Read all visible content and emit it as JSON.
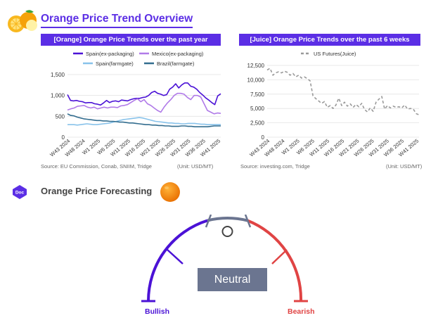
{
  "header": {
    "title": "Orange Price Trend Overview",
    "icon": "orange-icon"
  },
  "charts": {
    "left": {
      "title": "[Orange] Orange Price Trends over the past year",
      "source": "Source: EU Commission, Conab, SNIIM, Tridge",
      "unit": "(Unit: USD/MT)"
    },
    "right": {
      "title": "[Juice] Orange Price Trends over the past 6 weeks",
      "source": "Source: investing.com, Tridge",
      "unit": "(Unit: USD/MT)"
    }
  },
  "chart_data": [
    {
      "type": "line",
      "title": "[Orange] Orange Price Trends over the past year",
      "ylim": [
        0,
        1500
      ],
      "yticks": [
        "0",
        "500",
        "1,000",
        "1,500"
      ],
      "xtick_labels": [
        "W43 2024",
        "W48 2024",
        "W1 2025",
        "W6 2025",
        "W11 2025",
        "W16 2025",
        "W21 2025",
        "W26 2025",
        "W31 2025",
        "W36 2025",
        "W41 2025"
      ],
      "grid": true,
      "legend_position": "top",
      "series": [
        {
          "name": "Spain(ex-packaging)",
          "color": "#4b12d6",
          "dash": "solid",
          "values": [
            1020,
            880,
            870,
            880,
            860,
            850,
            820,
            830,
            830,
            800,
            790,
            770,
            820,
            880,
            830,
            860,
            870,
            850,
            890,
            880,
            870,
            900,
            920,
            930,
            930,
            950,
            960,
            1000,
            1070,
            1100,
            1050,
            1030,
            1000,
            1020,
            1150,
            1200,
            1280,
            1180,
            1250,
            1300,
            1300,
            1220,
            1200,
            1150,
            1070,
            1010,
            940,
            890,
            830,
            780,
            990,
            1040
          ]
        },
        {
          "name": "Mexico(ex-packaging)",
          "color": "#b07ae8",
          "dash": "solid",
          "values": [
            650,
            680,
            700,
            740,
            750,
            760,
            720,
            700,
            720,
            680,
            700,
            720,
            700,
            720,
            720,
            710,
            750,
            760,
            780,
            830,
            880,
            920,
            850,
            900,
            800,
            760,
            700,
            640,
            600,
            720,
            820,
            900,
            1000,
            1050,
            1050,
            1030,
            950,
            900,
            1000,
            1000,
            960,
            800,
            640,
            600,
            560,
            580,
            570
          ]
        },
        {
          "name": "Spain(farmgate)",
          "color": "#88c2ea",
          "dash": "solid",
          "values": [
            300,
            300,
            300,
            290,
            300,
            310,
            320,
            310,
            300,
            300,
            310,
            320,
            330,
            340,
            360,
            380,
            400,
            420,
            430,
            440,
            450,
            460,
            470,
            460,
            440,
            420,
            400,
            380,
            370,
            360,
            350,
            340,
            340,
            330,
            330,
            320,
            320,
            330,
            330,
            330,
            320,
            310,
            310,
            300,
            300,
            300,
            300,
            300
          ]
        },
        {
          "name": "Brazil(farmgate)",
          "color": "#336d8f",
          "dash": "solid",
          "values": [
            560,
            520,
            510,
            480,
            460,
            440,
            430,
            420,
            410,
            400,
            400,
            390,
            390,
            380,
            380,
            370,
            360,
            360,
            350,
            340,
            340,
            330,
            320,
            310,
            300,
            300,
            290,
            290,
            280,
            280,
            270,
            270,
            260,
            260,
            260,
            270,
            270,
            260,
            260,
            250,
            250,
            250,
            250,
            250,
            260,
            270,
            270,
            270
          ]
        }
      ]
    },
    {
      "type": "line",
      "title": "[Juice] Orange Price Trends over the past 6 weeks",
      "ylim": [
        0,
        12500
      ],
      "yticks": [
        "0",
        "2,500",
        "5,000",
        "7,500",
        "10,000",
        "12,500"
      ],
      "xtick_labels": [
        "W43 2024",
        "W48 2024",
        "W1 2025",
        "W6 2025",
        "W11 2025",
        "W16 2025",
        "W21 2025",
        "W26 2025",
        "W31 2025",
        "W36 2025",
        "W41 2025"
      ],
      "grid": true,
      "legend_position": "top",
      "series": [
        {
          "name": "US Futures(Juice)",
          "color": "#9a9a9a",
          "dash": "dashed",
          "values": [
            11700,
            12000,
            10800,
            11200,
            11400,
            11200,
            11500,
            11300,
            10800,
            11100,
            10500,
            10800,
            10300,
            10500,
            10200,
            9800,
            7200,
            6700,
            6300,
            5900,
            6200,
            5200,
            5500,
            5000,
            5600,
            6800,
            5500,
            6100,
            5400,
            5800,
            5200,
            5700,
            5300,
            5900,
            4800,
            4400,
            5100,
            4500,
            6100,
            6600,
            7100,
            4900,
            5500,
            5100,
            5400,
            5200,
            5300,
            5100,
            5600,
            4900,
            5000,
            4900,
            4100,
            3900
          ]
        }
      ]
    }
  ],
  "forecast": {
    "section_title": "Orange Price Forecasting",
    "badge": "Doc",
    "status": "Neutral",
    "left_label": "Bullish",
    "right_label": "Bearish",
    "left_color": "#4b12d6",
    "right_color": "#e04444",
    "neutral_color": "#6b7590"
  }
}
